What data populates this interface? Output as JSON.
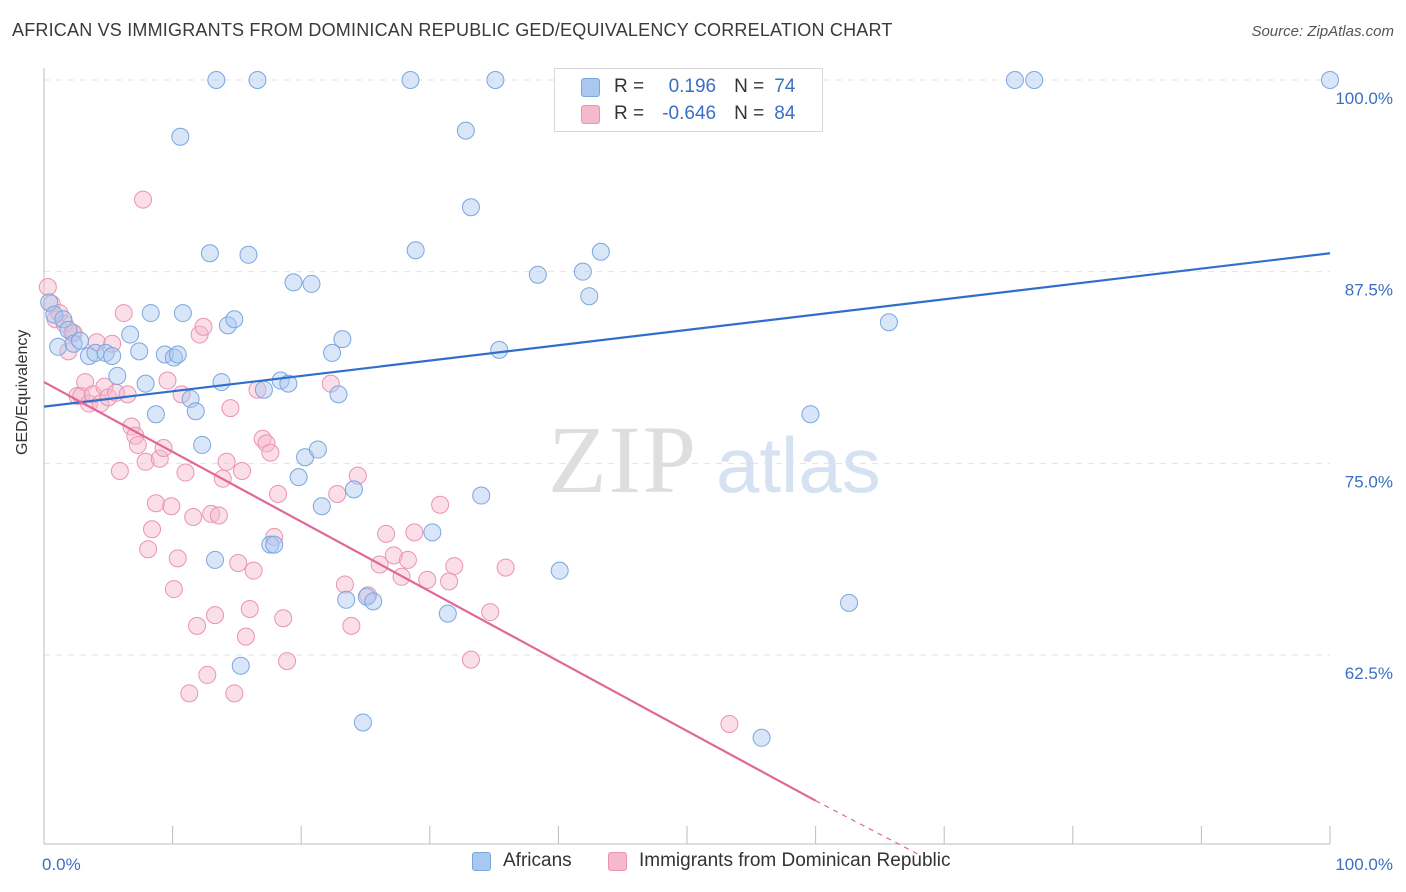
{
  "title": "AFRICAN VS IMMIGRANTS FROM DOMINICAN REPUBLIC GED/EQUIVALENCY CORRELATION CHART",
  "source": "Source: ZipAtlas.com",
  "watermark": {
    "zip": "ZIP",
    "atlas": "atlas"
  },
  "stats": {
    "row1": {
      "r_label": "R =",
      "r_value": "0.196",
      "n_label": "N =",
      "n_value": "74"
    },
    "row2": {
      "r_label": "R =",
      "r_value": "-0.646",
      "n_label": "N =",
      "n_value": "84"
    }
  },
  "legend": {
    "africans": "Africans",
    "dominican": "Immigrants from Dominican Republic"
  },
  "colors": {
    "blue_fill": "#a9c7ef",
    "blue_stroke": "#7aa6e0",
    "blue_line": "#2f6fcb",
    "pink_fill": "#f5b9cc",
    "pink_stroke": "#ec93b0",
    "pink_line": "#e0679a",
    "axis_label_blue": "#3a6fc4"
  },
  "chart_data": {
    "type": "scatter",
    "title": "AFRICAN VS IMMIGRANTS FROM DOMINICAN REPUBLIC GED/EQUIVALENCY CORRELATION CHART",
    "xlabel": "",
    "ylabel": "GED/Equivalency",
    "xlim": [
      0,
      100
    ],
    "ylim": [
      51,
      102
    ],
    "x_tick_labels": [
      "0.0%",
      "100.0%"
    ],
    "y_ticks": [
      62.5,
      75.0,
      87.5,
      100.0
    ],
    "y_tick_labels": [
      "62.5%",
      "75.0%",
      "87.5%",
      "100.0%"
    ],
    "grid": true,
    "legend_position": "bottom",
    "series": [
      {
        "name": "Africans",
        "r": 0.196,
        "n": 74,
        "trend": [
          [
            0,
            78.7
          ],
          [
            100,
            88.7
          ]
        ],
        "points": [
          [
            0.4,
            85.5
          ],
          [
            0.8,
            84.7
          ],
          [
            1.1,
            82.6
          ],
          [
            1.5,
            84.4
          ],
          [
            1.9,
            83.7
          ],
          [
            2.3,
            82.8
          ],
          [
            2.8,
            83.0
          ],
          [
            3.5,
            82.0
          ],
          [
            4.0,
            82.2
          ],
          [
            4.8,
            82.2
          ],
          [
            5.3,
            82.0
          ],
          [
            5.7,
            80.7
          ],
          [
            6.7,
            83.4
          ],
          [
            7.4,
            82.3
          ],
          [
            7.9,
            80.2
          ],
          [
            8.3,
            84.8
          ],
          [
            8.7,
            78.2
          ],
          [
            9.4,
            82.1
          ],
          [
            10.1,
            81.9
          ],
          [
            10.4,
            82.1
          ],
          [
            10.8,
            84.8
          ],
          [
            11.4,
            79.2
          ],
          [
            11.8,
            78.4
          ],
          [
            12.3,
            76.2
          ],
          [
            12.9,
            88.7
          ],
          [
            13.3,
            68.7
          ],
          [
            13.8,
            80.3
          ],
          [
            14.3,
            84.0
          ],
          [
            14.8,
            84.4
          ],
          [
            15.3,
            61.8
          ],
          [
            15.9,
            88.6
          ],
          [
            16.6,
            100.0
          ],
          [
            17.1,
            79.8
          ],
          [
            17.6,
            69.7
          ],
          [
            17.9,
            69.7
          ],
          [
            18.4,
            80.4
          ],
          [
            19.0,
            80.2
          ],
          [
            19.4,
            86.8
          ],
          [
            19.8,
            74.1
          ],
          [
            20.3,
            75.4
          ],
          [
            20.8,
            86.7
          ],
          [
            21.3,
            75.9
          ],
          [
            21.6,
            72.2
          ],
          [
            22.4,
            82.2
          ],
          [
            22.9,
            79.5
          ],
          [
            23.2,
            83.1
          ],
          [
            23.5,
            66.1
          ],
          [
            24.1,
            73.3
          ],
          [
            25.1,
            66.3
          ],
          [
            25.6,
            66.0
          ],
          [
            28.5,
            100.0
          ],
          [
            28.9,
            88.9
          ],
          [
            30.2,
            70.5
          ],
          [
            31.4,
            65.2
          ],
          [
            32.8,
            96.7
          ],
          [
            33.2,
            91.7
          ],
          [
            34.0,
            72.9
          ],
          [
            35.1,
            100.0
          ],
          [
            35.4,
            82.4
          ],
          [
            38.4,
            87.3
          ],
          [
            40.1,
            68.0
          ],
          [
            41.9,
            87.5
          ],
          [
            42.4,
            85.9
          ],
          [
            43.3,
            88.8
          ],
          [
            55.8,
            57.1
          ],
          [
            59.6,
            78.2
          ],
          [
            62.6,
            65.9
          ],
          [
            65.7,
            84.2
          ],
          [
            75.5,
            100.0
          ],
          [
            77.0,
            100.0
          ],
          [
            100.0,
            100.0
          ],
          [
            13.4,
            100.0
          ],
          [
            24.8,
            58.1
          ],
          [
            10.6,
            96.3
          ]
        ]
      },
      {
        "name": "Immigrants from Dominican Republic",
        "r": -0.646,
        "n": 84,
        "trend": [
          [
            0,
            80.3
          ],
          [
            60,
            53.0
          ]
        ],
        "trend_dashed": [
          [
            60,
            53.0
          ],
          [
            68,
            49.5
          ]
        ],
        "points": [
          [
            0.3,
            86.5
          ],
          [
            0.6,
            85.4
          ],
          [
            0.9,
            84.4
          ],
          [
            1.2,
            84.8
          ],
          [
            1.6,
            84.1
          ],
          [
            1.9,
            82.3
          ],
          [
            2.2,
            83.5
          ],
          [
            2.6,
            79.4
          ],
          [
            2.9,
            79.4
          ],
          [
            3.2,
            80.3
          ],
          [
            3.5,
            78.9
          ],
          [
            3.8,
            79.5
          ],
          [
            4.1,
            82.9
          ],
          [
            4.4,
            78.9
          ],
          [
            4.7,
            80.0
          ],
          [
            5.0,
            79.3
          ],
          [
            5.3,
            82.8
          ],
          [
            5.6,
            79.6
          ],
          [
            5.9,
            74.5
          ],
          [
            6.2,
            84.8
          ],
          [
            6.5,
            79.5
          ],
          [
            6.8,
            77.4
          ],
          [
            7.1,
            76.8
          ],
          [
            7.3,
            76.2
          ],
          [
            7.7,
            92.2
          ],
          [
            7.9,
            75.1
          ],
          [
            8.1,
            69.4
          ],
          [
            8.4,
            70.7
          ],
          [
            8.7,
            72.4
          ],
          [
            9.0,
            75.3
          ],
          [
            9.3,
            76.0
          ],
          [
            9.6,
            80.4
          ],
          [
            9.9,
            72.2
          ],
          [
            10.1,
            66.8
          ],
          [
            10.4,
            68.8
          ],
          [
            10.7,
            79.5
          ],
          [
            11.0,
            74.4
          ],
          [
            11.3,
            60.0
          ],
          [
            11.6,
            71.5
          ],
          [
            11.9,
            64.4
          ],
          [
            12.1,
            83.4
          ],
          [
            12.4,
            83.9
          ],
          [
            12.7,
            61.2
          ],
          [
            13.0,
            71.7
          ],
          [
            13.3,
            65.1
          ],
          [
            13.6,
            71.6
          ],
          [
            13.9,
            74.0
          ],
          [
            14.2,
            75.1
          ],
          [
            14.5,
            78.6
          ],
          [
            14.8,
            60.0
          ],
          [
            15.1,
            68.5
          ],
          [
            15.4,
            74.5
          ],
          [
            15.7,
            63.7
          ],
          [
            16.0,
            65.5
          ],
          [
            16.3,
            68.0
          ],
          [
            16.6,
            79.8
          ],
          [
            17.0,
            76.6
          ],
          [
            17.3,
            76.3
          ],
          [
            17.6,
            75.7
          ],
          [
            17.9,
            70.2
          ],
          [
            18.2,
            73.0
          ],
          [
            18.6,
            64.9
          ],
          [
            18.9,
            62.1
          ],
          [
            22.3,
            80.2
          ],
          [
            22.8,
            73.0
          ],
          [
            23.4,
            67.1
          ],
          [
            23.9,
            64.4
          ],
          [
            24.4,
            74.2
          ],
          [
            25.2,
            66.4
          ],
          [
            26.1,
            68.4
          ],
          [
            26.6,
            70.4
          ],
          [
            27.2,
            69.0
          ],
          [
            27.8,
            67.6
          ],
          [
            28.3,
            68.7
          ],
          [
            28.8,
            70.5
          ],
          [
            29.8,
            67.4
          ],
          [
            30.8,
            72.3
          ],
          [
            31.5,
            67.3
          ],
          [
            31.9,
            68.3
          ],
          [
            33.2,
            62.2
          ],
          [
            34.7,
            65.3
          ],
          [
            35.9,
            68.2
          ],
          [
            53.3,
            58.0
          ],
          [
            2.3,
            83.5
          ]
        ]
      }
    ]
  }
}
